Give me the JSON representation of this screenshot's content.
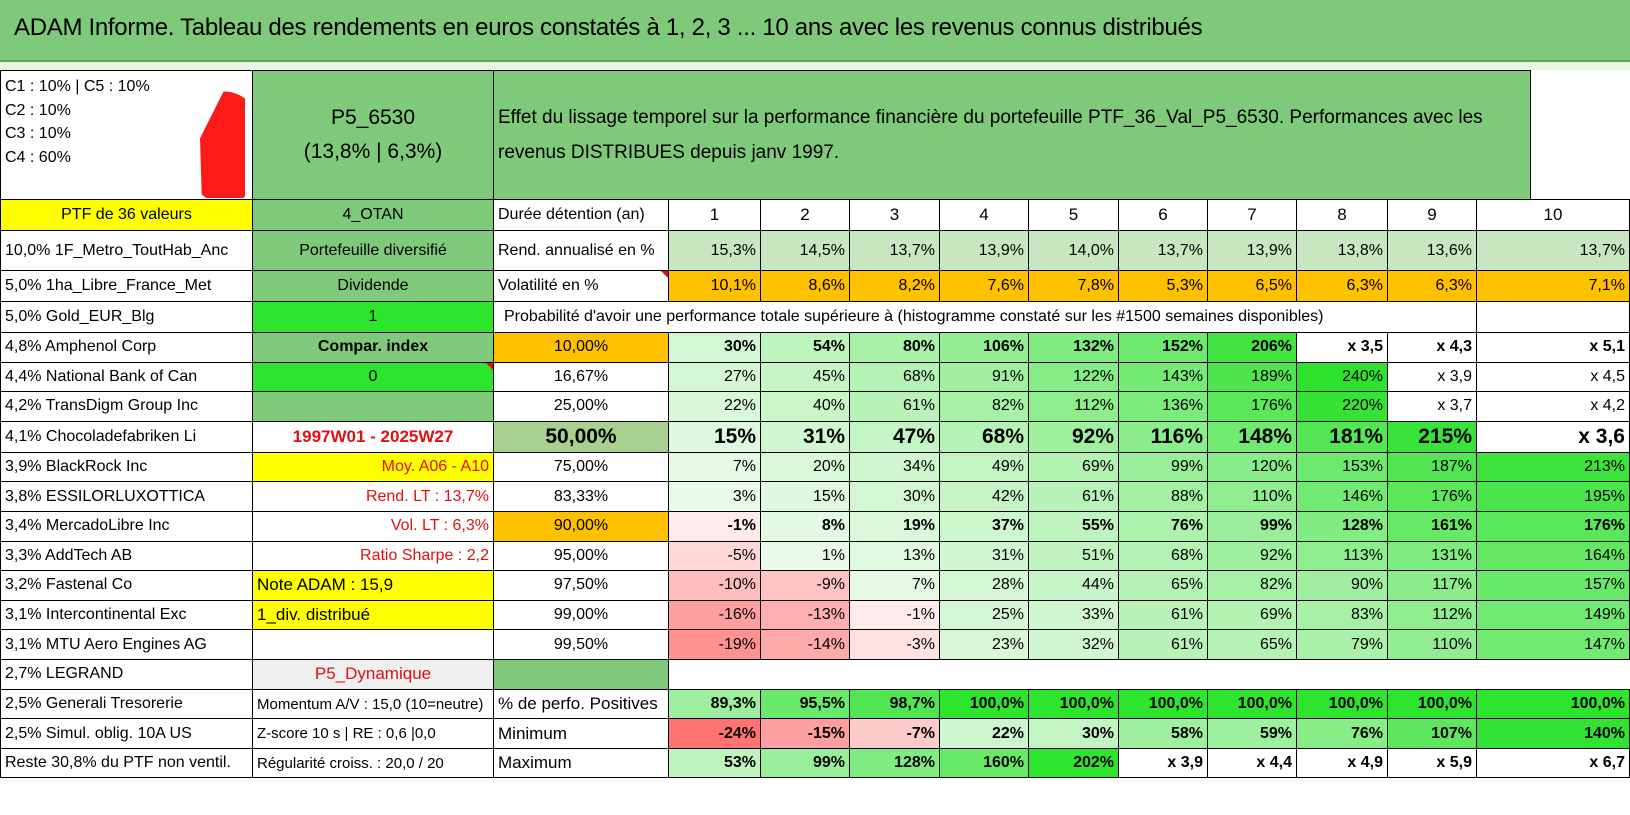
{
  "title": "ADAM Informe. Tableau des rendements en euros constatés à 1, 2, 3 ... 10 ans avec les revenus connus distribués",
  "allocation": {
    "lines": [
      "C1 : 10% | C5 : 10%",
      "C2 : 10%",
      "C3 : 10%",
      "C4 : 60%"
    ],
    "slices": [
      {
        "name": "C1",
        "value": 10,
        "color": "#6aa84f"
      },
      {
        "name": "C2",
        "value": 10,
        "color": "#7f4216"
      },
      {
        "name": "C3",
        "value": 10,
        "color": "#d9d9d9"
      },
      {
        "name": "C4",
        "value": 60,
        "color": "#ff1a1a"
      },
      {
        "name": "C5",
        "value": 10,
        "color": "#ffc000"
      }
    ]
  },
  "portfolio": {
    "code": "P5_6530",
    "stats": "(13,8% | 6,3%)",
    "description": "Effet du lissage temporel sur la performance financière du portefeuille PTF_36_Val_P5_6530. Performances avec les revenus DISTRIBUES depuis janv 1997."
  },
  "header": {
    "ptf": "PTF de 36 valeurs",
    "otan": "4_OTAN",
    "duree": "Durée détention (an)",
    "years": [
      "1",
      "2",
      "3",
      "4",
      "5",
      "6",
      "7",
      "8",
      "9",
      "10"
    ]
  },
  "rend": {
    "fund": "10,0% 1F_Metro_ToutHab_Anc",
    "c2": "Portefeuille diversifié",
    "label": "Rend. annualisé en %",
    "values": [
      "15,3%",
      "14,5%",
      "13,7%",
      "13,9%",
      "14,0%",
      "13,7%",
      "13,9%",
      "13,8%",
      "13,6%",
      "13,7%"
    ]
  },
  "vol": {
    "fund": "5,0% 1ha_Libre_France_Met",
    "c2": "Dividende",
    "label": "Volatilité en %",
    "values": [
      "10,1%",
      "8,6%",
      "8,2%",
      "7,6%",
      "7,8%",
      "5,3%",
      "6,5%",
      "6,3%",
      "6,3%",
      "7,1%"
    ]
  },
  "prob_header": {
    "fund": "5,0% Gold_EUR_Blg",
    "c2": "1",
    "label": "Probabilité d'avoir une performance totale supérieure à (histogramme constaté sur les #1500 semaines disponibles)"
  },
  "prob_rows": [
    {
      "fund": "4,8% Amphenol Corp",
      "c2": "Compar. index",
      "p": "10,00%",
      "values": [
        "30%",
        "54%",
        "80%",
        "106%",
        "132%",
        "152%",
        "206%",
        "x 3,5",
        "x 4,3",
        "x 5,1"
      ]
    },
    {
      "fund": "4,4% National Bank of Can",
      "c2": "0",
      "p": "16,67%",
      "values": [
        "27%",
        "45%",
        "68%",
        "91%",
        "122%",
        "143%",
        "189%",
        "240%",
        "x 3,9",
        "x 4,5"
      ]
    },
    {
      "fund": "4,2% TransDigm Group Inc",
      "c2": "",
      "p": "25,00%",
      "values": [
        "22%",
        "40%",
        "61%",
        "82%",
        "112%",
        "136%",
        "176%",
        "220%",
        "x 3,7",
        "x 4,2"
      ]
    },
    {
      "fund": "4,1% Chocoladefabriken Li",
      "c2": "1997W01 - 2025W27",
      "p": "50,00%",
      "values": [
        "15%",
        "31%",
        "47%",
        "68%",
        "92%",
        "116%",
        "148%",
        "181%",
        "215%",
        "x 3,6"
      ]
    },
    {
      "fund": "3,9% BlackRock Inc",
      "c2": "Moy. A06 - A10",
      "p": "75,00%",
      "values": [
        "7%",
        "20%",
        "34%",
        "49%",
        "69%",
        "99%",
        "120%",
        "153%",
        "187%",
        "213%"
      ]
    },
    {
      "fund": "3,8% ESSILORLUXOTTICA",
      "c2": "Rend. LT : 13,7%",
      "p": "83,33%",
      "values": [
        "3%",
        "15%",
        "30%",
        "42%",
        "61%",
        "88%",
        "110%",
        "146%",
        "176%",
        "195%"
      ]
    },
    {
      "fund": "3,4% MercadoLibre Inc",
      "c2": "Vol. LT : 6,3%",
      "p": "90,00%",
      "values": [
        "-1%",
        "8%",
        "19%",
        "37%",
        "55%",
        "76%",
        "99%",
        "128%",
        "161%",
        "176%"
      ]
    },
    {
      "fund": "3,3% AddTech AB",
      "c2": "Ratio Sharpe : 2,2",
      "p": "95,00%",
      "values": [
        "-5%",
        "1%",
        "13%",
        "31%",
        "51%",
        "68%",
        "92%",
        "113%",
        "131%",
        "164%"
      ]
    },
    {
      "fund": "3,2% Fastenal Co",
      "c2": "Note ADAM : 15,9",
      "p": "97,50%",
      "values": [
        "-10%",
        "-9%",
        "7%",
        "28%",
        "44%",
        "65%",
        "82%",
        "90%",
        "117%",
        "157%"
      ]
    },
    {
      "fund": "3,1% Intercontinental Exc",
      "c2": "1_div. distribué",
      "p": "99,00%",
      "values": [
        "-16%",
        "-13%",
        "-1%",
        "25%",
        "33%",
        "61%",
        "69%",
        "83%",
        "112%",
        "149%"
      ]
    },
    {
      "fund": "3,1% MTU Aero Engines AG",
      "c2": "",
      "p": "99,50%",
      "values": [
        "-19%",
        "-14%",
        "-3%",
        "23%",
        "32%",
        "61%",
        "65%",
        "79%",
        "110%",
        "147%"
      ]
    }
  ],
  "legrand": {
    "fund": "2,7% LEGRAND",
    "c2": "P5_Dynamique"
  },
  "summary": [
    {
      "fund": "2,5% Generali Tresorerie",
      "c2": "Momentum A/V : 15,0 (10=neutre)",
      "label": "% de perfo. Positives",
      "values": [
        "89,3%",
        "95,5%",
        "98,7%",
        "100,0%",
        "100,0%",
        "100,0%",
        "100,0%",
        "100,0%",
        "100,0%",
        "100,0%"
      ]
    },
    {
      "fund": "2,5% Simul. oblig. 10A US",
      "c2": "Z-score 10 s | RE : 0,6 |0,0",
      "label": "Minimum",
      "values": [
        "-24%",
        "-15%",
        "-7%",
        "22%",
        "30%",
        "58%",
        "59%",
        "76%",
        "107%",
        "140%"
      ]
    },
    {
      "fund": "Reste 30,8% du PTF non ventil.",
      "c2": "Régularité croiss. : 20,0 / 20",
      "label": "Maximum",
      "values": [
        "53%",
        "99%",
        "128%",
        "160%",
        "202%",
        "x 3,9",
        "x 4,4",
        "x 4,9",
        "x 5,9",
        "x 6,7"
      ]
    }
  ],
  "colors": {
    "rend_bg": "#c8e6bf",
    "vol_bg": "#ffc000",
    "title_bg": "#7fc97a",
    "highlight_yellow": "#ffff00",
    "bright_green": "#2ee52e",
    "red_text": "#e01010"
  }
}
